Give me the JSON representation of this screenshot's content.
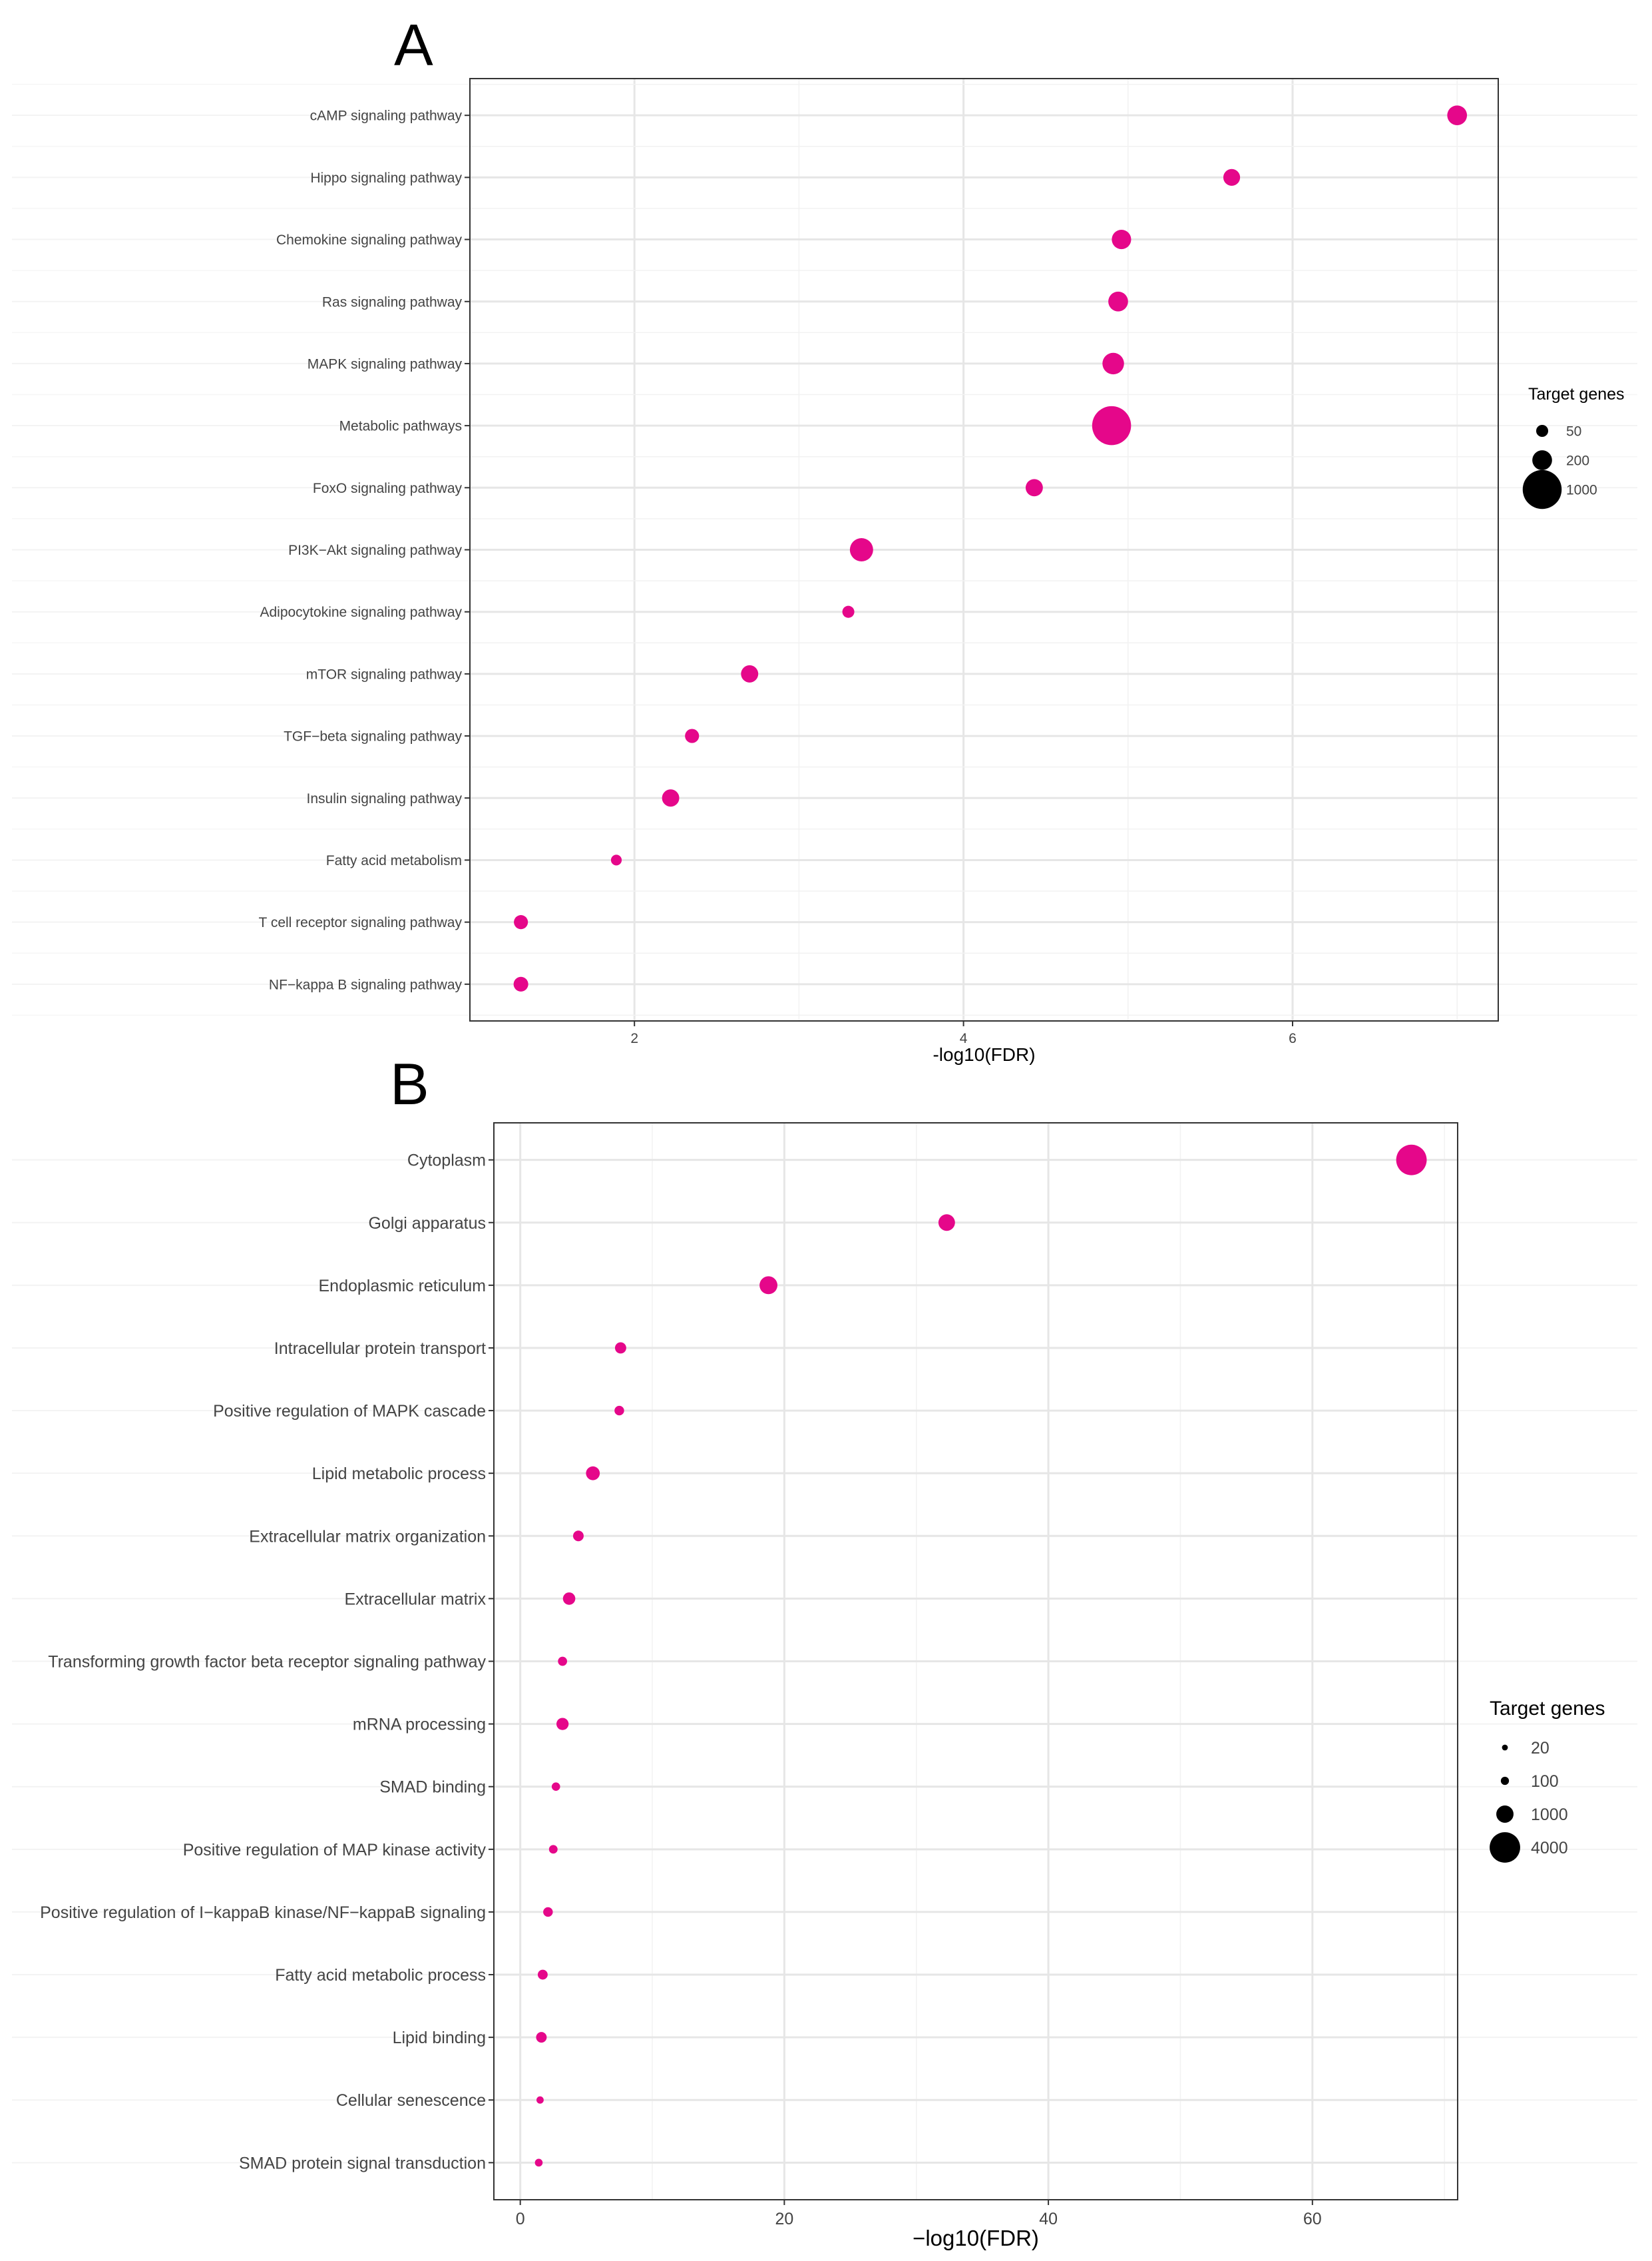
{
  "colors": {
    "point": "#e5078a",
    "grid_major": "#e6e6e6",
    "grid_minor": "#f2f2f2",
    "border": "#333333",
    "text": "#444444",
    "title": "#000000"
  },
  "chart_data": [
    {
      "type": "scatter",
      "panel_label": "A",
      "xlabel": "-log10(FDR)",
      "ylabel": "",
      "xlim": [
        1.0,
        7.25
      ],
      "x_ticks": [
        2,
        4,
        6
      ],
      "x_tick_labels": [
        "2",
        "4",
        "6"
      ],
      "x_minor_ticks": [
        1,
        3,
        5,
        7
      ],
      "grid": true,
      "legend_position": "right",
      "legend": {
        "title": "Target genes",
        "entries": [
          {
            "label": "50",
            "size": 50
          },
          {
            "label": "200",
            "size": 200
          },
          {
            "label": "1000",
            "size": 1000
          }
        ]
      },
      "categories": [
        "cAMP signaling pathway",
        "Hippo signaling pathway",
        "Chemokine signaling pathway",
        "Ras signaling pathway",
        "MAPK signaling pathway",
        "Metabolic pathways",
        "FoxO signaling pathway",
        "PI3K−Akt signaling pathway",
        "Adipocytokine signaling pathway",
        "mTOR signaling pathway",
        "TGF−beta signaling pathway",
        "Insulin signaling pathway",
        "Fatty acid metabolism",
        "T cell receptor signaling pathway",
        "NF−kappa B signaling pathway"
      ],
      "values": [
        7.0,
        5.63,
        4.96,
        4.94,
        4.91,
        4.9,
        4.43,
        3.38,
        3.3,
        2.7,
        2.35,
        2.22,
        1.89,
        1.31,
        1.31
      ],
      "sizes": [
        200,
        130,
        190,
        200,
        250,
        1000,
        140,
        300,
        50,
        140,
        80,
        140,
        35,
        80,
        90
      ]
    },
    {
      "type": "scatter",
      "panel_label": "B",
      "xlabel": "−log10(FDR)",
      "ylabel": "",
      "xlim": [
        -2,
        71
      ],
      "x_ticks": [
        0,
        20,
        40,
        60
      ],
      "x_tick_labels": [
        "0",
        "20",
        "40",
        "60"
      ],
      "x_minor_ticks": [
        10,
        30,
        50,
        70
      ],
      "grid": true,
      "legend_position": "right",
      "legend": {
        "title": "Target genes",
        "entries": [
          {
            "label": "20",
            "size": 20
          },
          {
            "label": "100",
            "size": 100
          },
          {
            "label": "1000",
            "size": 1000
          },
          {
            "label": "4000",
            "size": 4000
          }
        ]
      },
      "categories": [
        "Cytoplasm",
        "Golgi apparatus",
        "Endoplasmic reticulum",
        "Intracellular protein transport",
        "Positive regulation of MAPK cascade",
        "Lipid metabolic process",
        "Extracellular matrix organization",
        "Extracellular matrix",
        "Transforming growth factor beta receptor signaling pathway",
        "mRNA processing",
        "SMAD binding",
        "Positive regulation of MAP kinase activity",
        "Positive regulation of I−kappaB kinase/NF−kappaB signaling",
        "Fatty acid metabolic process",
        "Lipid binding",
        "Cellular senescence",
        "SMAD protein signal transduction"
      ],
      "values": [
        67.5,
        32.3,
        18.8,
        7.6,
        7.5,
        5.5,
        4.4,
        3.7,
        3.2,
        3.2,
        2.7,
        2.5,
        2.1,
        1.7,
        1.6,
        1.5,
        1.4
      ],
      "sizes": [
        4000,
        900,
        1100,
        300,
        180,
        550,
        250,
        400,
        150,
        380,
        110,
        120,
        180,
        200,
        250,
        60,
        80
      ]
    }
  ]
}
